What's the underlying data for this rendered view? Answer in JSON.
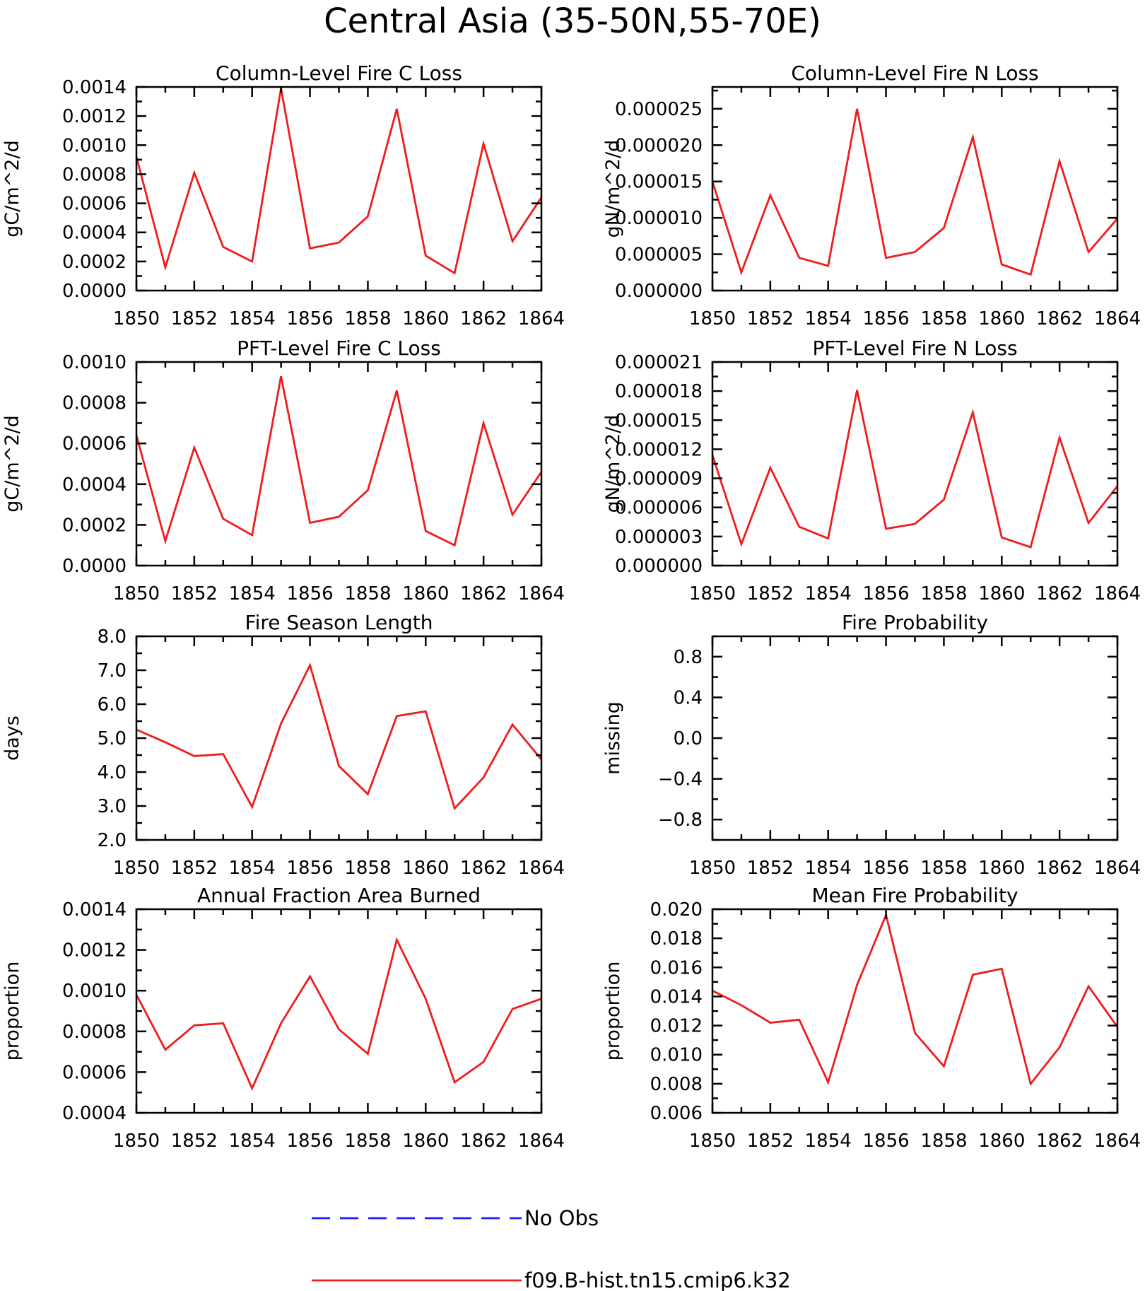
{
  "title": "Central Asia (35-50N,55-70E)",
  "legend": [
    {
      "label": "No Obs",
      "color": "#1f1fff",
      "dash": true
    },
    {
      "label": "f09.B-hist.tn15.cmip6.k32",
      "color": "#ee1c1c",
      "dash": false
    }
  ],
  "chart_data": [
    {
      "type": "line",
      "title": "Column-Level Fire C Loss",
      "xlabel": "",
      "ylabel": "gC/m^2/d",
      "xlim": [
        1850,
        1864
      ],
      "ylim": [
        0,
        0.0014
      ],
      "xticks": [
        "1850",
        "1852",
        "1854",
        "1856",
        "1858",
        "1860",
        "1862",
        "1864"
      ],
      "yticks": [
        "0.0000",
        "0.0002",
        "0.0004",
        "0.0006",
        "0.0008",
        "0.0010",
        "0.0012",
        "0.0014"
      ],
      "x": [
        1850,
        1851,
        1852,
        1853,
        1854,
        1855,
        1856,
        1857,
        1858,
        1859,
        1860,
        1861,
        1862,
        1863,
        1864
      ],
      "series": [
        {
          "color": "#ee1c1c",
          "values": [
            0.00092,
            0.00016,
            0.00081,
            0.0003,
            0.0002,
            0.00139,
            0.00029,
            0.00033,
            0.00051,
            0.00125,
            0.00024,
            0.00012,
            0.00101,
            0.00034,
            0.00064
          ]
        }
      ]
    },
    {
      "type": "line",
      "title": "Column-Level Fire N Loss",
      "xlabel": "",
      "ylabel": "gN/m^2/d",
      "xlim": [
        1850,
        1864
      ],
      "ylim": [
        0,
        2.8e-05
      ],
      "xticks": [
        "1850",
        "1852",
        "1854",
        "1856",
        "1858",
        "1860",
        "1862",
        "1864"
      ],
      "yticks": [
        "0.000000",
        "0.000005",
        "0.000010",
        "0.000015",
        "0.000020",
        "0.000025"
      ],
      "x": [
        1850,
        1851,
        1852,
        1853,
        1854,
        1855,
        1856,
        1857,
        1858,
        1859,
        1860,
        1861,
        1862,
        1863,
        1864
      ],
      "series": [
        {
          "color": "#ee1c1c",
          "values": [
            1.5e-05,
            2.5e-06,
            1.31e-05,
            4.5e-06,
            3.4e-06,
            2.5e-05,
            4.5e-06,
            5.3e-06,
            8.6e-06,
            2.11e-05,
            3.6e-06,
            2.2e-06,
            1.78e-05,
            5.3e-06,
            9.9e-06
          ]
        }
      ]
    },
    {
      "type": "line",
      "title": "PFT-Level Fire C Loss",
      "xlabel": "",
      "ylabel": "gC/m^2/d",
      "xlim": [
        1850,
        1864
      ],
      "ylim": [
        0,
        0.001
      ],
      "xticks": [
        "1850",
        "1852",
        "1854",
        "1856",
        "1858",
        "1860",
        "1862",
        "1864"
      ],
      "yticks": [
        "0.0000",
        "0.0002",
        "0.0004",
        "0.0006",
        "0.0008",
        "0.0010"
      ],
      "x": [
        1850,
        1851,
        1852,
        1853,
        1854,
        1855,
        1856,
        1857,
        1858,
        1859,
        1860,
        1861,
        1862,
        1863,
        1864
      ],
      "series": [
        {
          "color": "#ee1c1c",
          "values": [
            0.00064,
            0.00012,
            0.00058,
            0.00023,
            0.00015,
            0.00093,
            0.00021,
            0.00024,
            0.00037,
            0.00086,
            0.00017,
            0.0001,
            0.0007,
            0.00025,
            0.00046
          ]
        }
      ]
    },
    {
      "type": "line",
      "title": "PFT-Level Fire N Loss",
      "xlabel": "",
      "ylabel": "gN/m^2/d",
      "xlim": [
        1850,
        1864
      ],
      "ylim": [
        0,
        2.1e-05
      ],
      "xticks": [
        "1850",
        "1852",
        "1854",
        "1856",
        "1858",
        "1860",
        "1862",
        "1864"
      ],
      "yticks": [
        "0.000000",
        "0.000003",
        "0.000006",
        "0.000009",
        "0.000012",
        "0.000015",
        "0.000018",
        "0.000021"
      ],
      "x": [
        1850,
        1851,
        1852,
        1853,
        1854,
        1855,
        1856,
        1857,
        1858,
        1859,
        1860,
        1861,
        1862,
        1863,
        1864
      ],
      "series": [
        {
          "color": "#ee1c1c",
          "values": [
            1.14e-05,
            2.2e-06,
            1.01e-05,
            4e-06,
            2.8e-06,
            1.81e-05,
            3.8e-06,
            4.3e-06,
            6.8e-06,
            1.58e-05,
            2.9e-06,
            1.9e-06,
            1.32e-05,
            4.4e-06,
            8.2e-06
          ]
        }
      ]
    },
    {
      "type": "line",
      "title": "Fire Season Length",
      "xlabel": "",
      "ylabel": "days",
      "xlim": [
        1850,
        1864
      ],
      "ylim": [
        2.0,
        8.0
      ],
      "xticks": [
        "1850",
        "1852",
        "1854",
        "1856",
        "1858",
        "1860",
        "1862",
        "1864"
      ],
      "yticks": [
        "2.0",
        "3.0",
        "4.0",
        "5.0",
        "6.0",
        "7.0",
        "8.0"
      ],
      "x": [
        1850,
        1851,
        1852,
        1853,
        1854,
        1855,
        1856,
        1857,
        1858,
        1859,
        1860,
        1861,
        1862,
        1863,
        1864
      ],
      "series": [
        {
          "color": "#ee1c1c",
          "values": [
            5.25,
            4.88,
            4.47,
            4.53,
            2.97,
            5.43,
            7.15,
            4.18,
            3.35,
            5.65,
            5.79,
            2.93,
            3.84,
            5.4,
            4.37
          ]
        }
      ]
    },
    {
      "type": "line",
      "title": "Fire Probability",
      "xlabel": "",
      "ylabel": "missing",
      "xlim": [
        1850,
        1864
      ],
      "ylim": [
        -1.0,
        1.0
      ],
      "xticks": [
        "1850",
        "1852",
        "1854",
        "1856",
        "1858",
        "1860",
        "1862",
        "1864"
      ],
      "yticks": [
        "-0.8",
        "-0.4",
        "0.0",
        "0.4",
        "0.8"
      ],
      "x": [],
      "series": []
    },
    {
      "type": "line",
      "title": "Annual Fraction Area Burned",
      "xlabel": "",
      "ylabel": "proportion",
      "xlim": [
        1850,
        1864
      ],
      "ylim": [
        0.0004,
        0.0014
      ],
      "xticks": [
        "1850",
        "1852",
        "1854",
        "1856",
        "1858",
        "1860",
        "1862",
        "1864"
      ],
      "yticks": [
        "0.0004",
        "0.0006",
        "0.0008",
        "0.0010",
        "0.0012",
        "0.0014"
      ],
      "x": [
        1850,
        1851,
        1852,
        1853,
        1854,
        1855,
        1856,
        1857,
        1858,
        1859,
        1860,
        1861,
        1862,
        1863,
        1864
      ],
      "series": [
        {
          "color": "#ee1c1c",
          "values": [
            0.00098,
            0.00071,
            0.00083,
            0.00084,
            0.00052,
            0.00084,
            0.00107,
            0.00081,
            0.00069,
            0.00125,
            0.00096,
            0.00055,
            0.00065,
            0.00091,
            0.00096
          ]
        }
      ]
    },
    {
      "type": "line",
      "title": "Mean Fire Probability",
      "xlabel": "",
      "ylabel": "proportion",
      "xlim": [
        1850,
        1864
      ],
      "ylim": [
        0.006,
        0.02
      ],
      "xticks": [
        "1850",
        "1852",
        "1854",
        "1856",
        "1858",
        "1860",
        "1862",
        "1864"
      ],
      "yticks": [
        "0.006",
        "0.008",
        "0.010",
        "0.012",
        "0.014",
        "0.016",
        "0.018",
        "0.020"
      ],
      "x": [
        1850,
        1851,
        1852,
        1853,
        1854,
        1855,
        1856,
        1857,
        1858,
        1859,
        1860,
        1861,
        1862,
        1863,
        1864
      ],
      "series": [
        {
          "color": "#ee1c1c",
          "values": [
            0.0144,
            0.0134,
            0.0122,
            0.0124,
            0.0081,
            0.0148,
            0.0196,
            0.0115,
            0.0092,
            0.0155,
            0.0159,
            0.008,
            0.0105,
            0.0147,
            0.0119
          ]
        }
      ]
    }
  ]
}
